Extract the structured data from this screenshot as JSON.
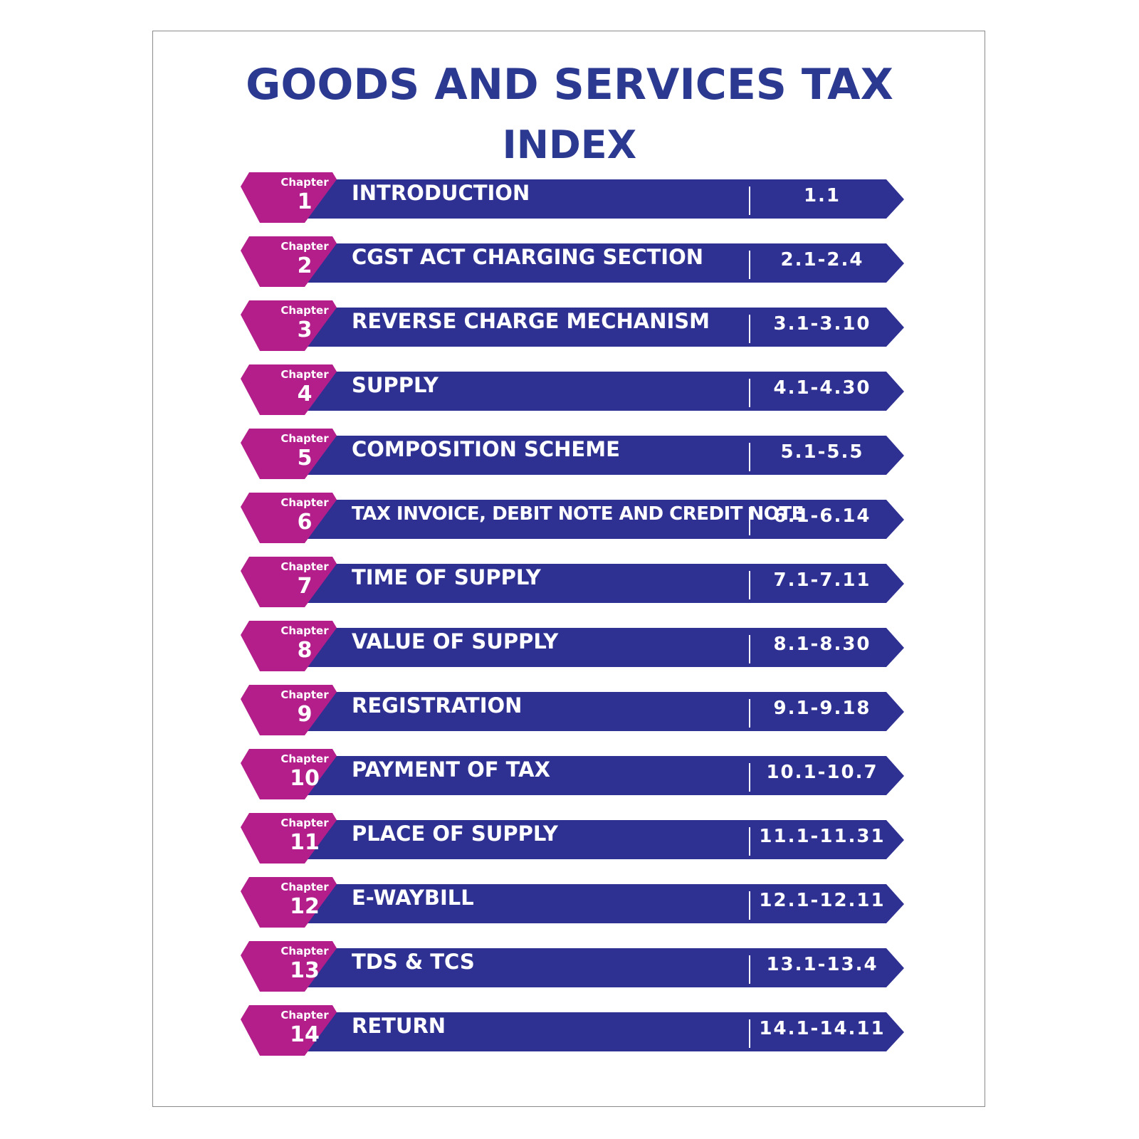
{
  "title": "GOODS AND SERVICES TAX",
  "subtitle": "INDEX",
  "colors": {
    "title": "#2b3990",
    "bar": "#2e3192",
    "tab": "#b31e8b"
  },
  "chapter_word": "Chapter",
  "chapters": [
    {
      "num": "1",
      "title": "INTRODUCTION",
      "range": "1.1"
    },
    {
      "num": "2",
      "title": "CGST ACT CHARGING SECTION",
      "range": "2.1-2.4"
    },
    {
      "num": "3",
      "title": "REVERSE CHARGE MECHANISM",
      "range": "3.1-3.10"
    },
    {
      "num": "4",
      "title": "SUPPLY",
      "range": "4.1-4.30"
    },
    {
      "num": "5",
      "title": "COMPOSITION SCHEME",
      "range": "5.1-5.5"
    },
    {
      "num": "6",
      "title": "TAX INVOICE, DEBIT NOTE AND CREDIT NOTE",
      "range": "6.1-6.14"
    },
    {
      "num": "7",
      "title": "TIME OF SUPPLY",
      "range": "7.1-7.11"
    },
    {
      "num": "8",
      "title": "VALUE OF SUPPLY",
      "range": "8.1-8.30"
    },
    {
      "num": "9",
      "title": "REGISTRATION",
      "range": "9.1-9.18"
    },
    {
      "num": "10",
      "title": "PAYMENT OF TAX",
      "range": "10.1-10.7"
    },
    {
      "num": "11",
      "title": "PLACE OF SUPPLY",
      "range": "11.1-11.31"
    },
    {
      "num": "12",
      "title": "E-WAYBILL",
      "range": "12.1-12.11"
    },
    {
      "num": "13",
      "title": "TDS & TCS",
      "range": "13.1-13.4"
    },
    {
      "num": "14",
      "title": "RETURN",
      "range": "14.1-14.11"
    }
  ]
}
